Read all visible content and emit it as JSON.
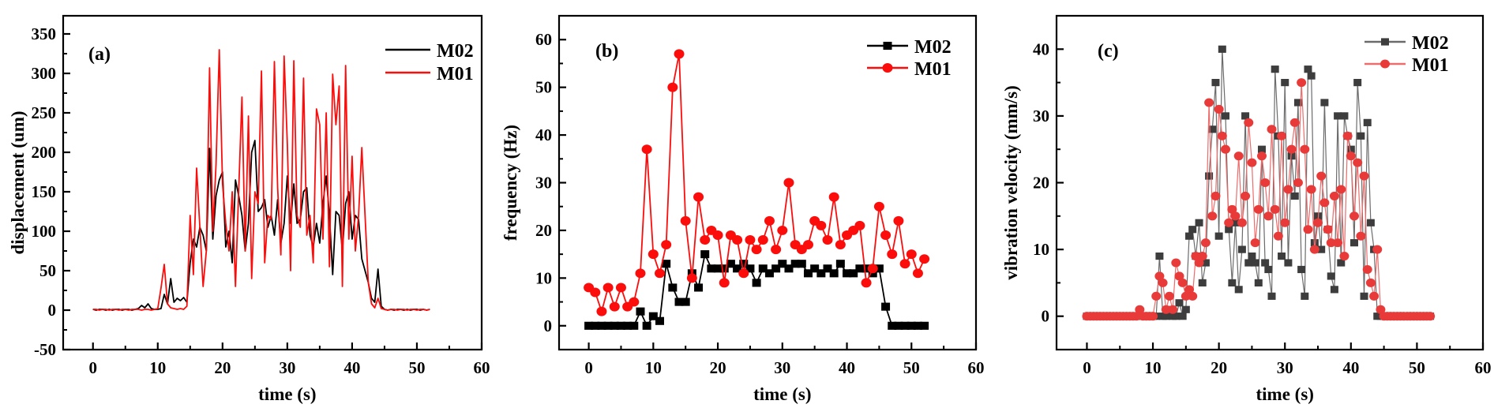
{
  "figure": {
    "background": "#ffffff"
  },
  "chart_data": [
    {
      "id": "a",
      "type": "line",
      "panel_label": "(a)",
      "xlabel": "time (s)",
      "ylabel": "displacement（um）",
      "xlim": [
        -4.6,
        60
      ],
      "ylim": [
        -50,
        373
      ],
      "x_ticks": [
        0,
        10,
        20,
        30,
        40,
        50,
        60
      ],
      "x_minor_step": 5,
      "y_ticks": [
        -50,
        0,
        50,
        100,
        150,
        200,
        250,
        300,
        350
      ],
      "y_minor_step": 25,
      "grid": false,
      "legend_position": "top-right",
      "series": [
        {
          "name": "M02",
          "line_color": "#000000",
          "marker": "none",
          "marker_color": "#000000",
          "line_width": 1.8,
          "t0": 0,
          "dt": 0.5,
          "values": [
            1,
            0,
            1,
            1,
            0,
            1,
            0,
            1,
            1,
            0,
            1,
            1,
            0,
            1,
            2,
            6,
            3,
            8,
            2,
            1,
            1,
            2,
            20,
            8,
            40,
            10,
            15,
            12,
            16,
            10,
            60,
            90,
            80,
            105,
            95,
            75,
            205,
            90,
            145,
            165,
            175,
            80,
            100,
            60,
            165,
            145,
            120,
            75,
            110,
            200,
            215,
            125,
            130,
            140,
            105,
            120,
            95,
            140,
            85,
            110,
            170,
            110,
            160,
            110,
            115,
            150,
            155,
            95,
            80,
            110,
            85,
            135,
            170,
            120,
            45,
            125,
            120,
            75,
            135,
            150,
            90,
            120,
            115,
            65,
            50,
            35,
            15,
            10,
            52,
            5,
            1,
            0,
            1,
            0,
            1,
            1,
            0,
            1,
            0,
            1,
            1,
            0,
            1,
            0,
            1
          ]
        },
        {
          "name": "M01",
          "line_color": "#fb0d0c",
          "marker": "none",
          "marker_color": "#fb0d0c",
          "line_width": 1.8,
          "t0": 0,
          "dt": 0.5,
          "values": [
            1,
            1,
            0,
            1,
            1,
            0,
            1,
            1,
            0,
            1,
            1,
            0,
            1,
            1,
            1,
            0,
            1,
            1,
            0,
            1,
            2,
            28,
            58,
            8,
            3,
            2,
            1,
            2,
            1,
            5,
            120,
            45,
            180,
            105,
            30,
            75,
            307,
            100,
            185,
            330,
            160,
            110,
            75,
            150,
            30,
            152,
            270,
            75,
            246,
            40,
            150,
            135,
            303,
            60,
            120,
            115,
            315,
            155,
            70,
            322,
            210,
            50,
            316,
            120,
            105,
            294,
            95,
            120,
            60,
            255,
            235,
            90,
            250,
            55,
            299,
            235,
            284,
            30,
            310,
            90,
            195,
            75,
            120,
            206,
            120,
            35,
            8,
            3,
            15,
            2,
            1,
            0,
            1,
            1,
            0,
            1,
            1,
            0,
            1,
            1,
            0,
            1,
            1,
            0,
            1
          ]
        }
      ]
    },
    {
      "id": "b",
      "type": "line",
      "panel_label": "(b)",
      "xlabel": "time (s)",
      "ylabel": "frequency（Hz）",
      "xlim": [
        -4.6,
        60
      ],
      "ylim": [
        -5,
        65
      ],
      "x_ticks": [
        0,
        10,
        20,
        30,
        40,
        50,
        60
      ],
      "x_minor_step": 5,
      "y_ticks": [
        0,
        10,
        20,
        30,
        40,
        50,
        60
      ],
      "y_minor_step": 5,
      "grid": false,
      "legend_position": "top-right",
      "series": [
        {
          "name": "M02",
          "line_color": "#000000",
          "marker": "square",
          "marker_color": "#000000",
          "marker_size": 11,
          "line_width": 1.8,
          "t0": 0,
          "dt": 1,
          "values": [
            0,
            0,
            0,
            0,
            0,
            0,
            0,
            0,
            3,
            0,
            2,
            1,
            13,
            8,
            5,
            5,
            11,
            8,
            15,
            12,
            12,
            12,
            13,
            12,
            13,
            12,
            9,
            12,
            11,
            12,
            13,
            12,
            13,
            13,
            11,
            12,
            11,
            12,
            11,
            13,
            11,
            11,
            12,
            12,
            11,
            12,
            4,
            0,
            0,
            0,
            0,
            0,
            0
          ]
        },
        {
          "name": "M01",
          "line_color": "#fb0d0c",
          "marker": "circle",
          "marker_color": "#fb0d0c",
          "marker_size": 13,
          "line_width": 1.8,
          "t0": 0,
          "dt": 1,
          "values": [
            8,
            7,
            3,
            8,
            4,
            8,
            4,
            5,
            11,
            37,
            15,
            11,
            17,
            50,
            57,
            22,
            10,
            27,
            18,
            20,
            19,
            9,
            19,
            18,
            11,
            18,
            16,
            18,
            22,
            16,
            20,
            30,
            17,
            16,
            17,
            22,
            21,
            18,
            27,
            17,
            19,
            20,
            21,
            9,
            12,
            25,
            19,
            15,
            22,
            13,
            15,
            11,
            14
          ]
        }
      ]
    },
    {
      "id": "c",
      "type": "line",
      "panel_label": "(c)",
      "xlabel": "time (s)",
      "ylabel": "vibration velocity（mm/s）",
      "xlim": [
        -4.6,
        60
      ],
      "ylim": [
        -5,
        45
      ],
      "x_ticks": [
        0,
        10,
        20,
        30,
        40,
        50,
        60
      ],
      "x_minor_step": 5,
      "y_ticks": [
        0,
        10,
        20,
        30,
        40
      ],
      "y_minor_step": 5,
      "grid": false,
      "legend_position": "top-right",
      "series": [
        {
          "name": "M02",
          "line_color": "#6b6b6b",
          "marker": "square",
          "marker_color": "#3d3d3d",
          "marker_size": 10,
          "line_width": 1.2,
          "t0": 0,
          "dt": 0.5,
          "values": [
            0,
            0,
            0,
            0,
            0,
            0,
            0,
            0,
            0,
            0,
            0,
            0,
            0,
            0,
            0,
            0,
            0,
            0,
            0,
            0,
            0,
            0,
            9,
            0,
            0,
            1,
            0,
            0,
            2,
            0,
            1,
            12,
            13,
            9,
            14,
            5,
            8,
            21,
            28,
            35,
            12,
            40,
            30,
            13,
            5,
            14,
            4,
            10,
            30,
            8,
            9,
            8,
            5,
            25,
            8,
            7,
            3,
            37,
            27,
            9,
            35,
            8,
            24,
            18,
            32,
            7,
            3,
            37,
            36,
            11,
            15,
            10,
            32,
            13,
            6,
            4,
            30,
            8,
            30,
            27,
            25,
            11,
            35,
            27,
            3,
            29,
            14,
            10,
            0,
            0,
            0,
            0,
            0,
            0,
            0,
            0,
            0,
            0,
            0,
            0,
            0,
            0,
            0,
            0,
            0
          ]
        },
        {
          "name": "M01",
          "line_color": "#ed6d6c",
          "marker": "circle",
          "marker_color": "#e83a39",
          "marker_size": 12,
          "line_width": 1.2,
          "t0": 0,
          "dt": 0.5,
          "values": [
            0,
            0,
            0,
            0,
            0,
            0,
            0,
            0,
            0,
            0,
            0,
            0,
            0,
            0,
            0,
            0,
            1,
            0,
            0,
            0,
            0,
            3,
            6,
            5,
            1,
            3,
            1,
            8,
            6,
            5,
            3,
            4,
            3,
            9,
            8,
            9,
            11,
            32,
            15,
            18,
            31,
            27,
            25,
            14,
            16,
            15,
            24,
            14,
            18,
            29,
            23,
            11,
            16,
            24,
            20,
            15,
            28,
            16,
            12,
            27,
            14,
            19,
            25,
            29,
            20,
            35,
            25,
            13,
            19,
            10,
            14,
            21,
            17,
            13,
            11,
            18,
            11,
            19,
            9,
            27,
            24,
            15,
            23,
            12,
            21,
            7,
            5,
            3,
            10,
            1,
            0,
            0,
            0,
            0,
            0,
            0,
            0,
            0,
            0,
            0,
            0,
            0,
            0,
            0,
            0
          ]
        }
      ]
    }
  ]
}
